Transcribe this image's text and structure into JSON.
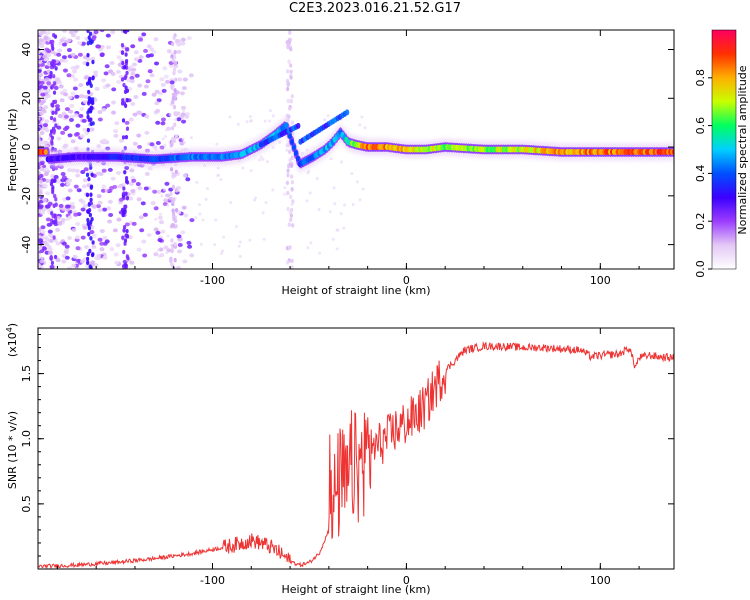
{
  "title": "C2E3.2023.016.21.52.G17",
  "chart_data": [
    {
      "type": "heatmap",
      "title": "C2E3.2023.016.21.52.G17",
      "xlabel": "Height of straight line (km)",
      "ylabel": "Frequency (Hz)",
      "xlim": [
        -190,
        138
      ],
      "ylim": [
        -50,
        48
      ],
      "xticks": [
        -100,
        0,
        100
      ],
      "yticks": [
        -40,
        -20,
        0,
        20,
        40
      ],
      "colorbar": {
        "label": "Normalized spectral amplitude",
        "range": [
          0,
          1
        ],
        "ticks": [
          0.0,
          0.2,
          0.4,
          0.6,
          0.8
        ],
        "colormap": [
          "#ffffff",
          "#e3c8f5",
          "#9b3dff",
          "#3a00ff",
          "#0050ff",
          "#00d0ff",
          "#00ff60",
          "#c8ff00",
          "#ffb000",
          "#ff3000",
          "#ff0060"
        ]
      },
      "signal_ridge": {
        "x": [
          -185,
          -170,
          -150,
          -130,
          -110,
          -95,
          -85,
          -75,
          -68,
          -62,
          -55,
          -48,
          -42,
          -38,
          -34,
          -30,
          -26,
          -20,
          -10,
          0,
          10,
          20,
          40,
          60,
          80,
          100,
          120,
          138
        ],
        "y": [
          -5,
          -4,
          -4,
          -5,
          -4,
          -4,
          -3,
          1,
          5,
          9,
          -7,
          -4,
          -1,
          2,
          6,
          2,
          1,
          0,
          0,
          -1,
          -1,
          0,
          -1,
          -1,
          -2,
          -2,
          -2,
          -2
        ],
        "amplitude": [
          0.3,
          0.3,
          0.35,
          0.4,
          0.45,
          0.45,
          0.5,
          0.5,
          0.5,
          0.45,
          0.4,
          0.45,
          0.5,
          0.5,
          0.45,
          0.6,
          0.75,
          0.9,
          0.85,
          0.8,
          0.75,
          0.7,
          0.7,
          0.75,
          0.85,
          0.9,
          0.9,
          0.95
        ]
      }
    },
    {
      "type": "line",
      "xlabel": "Height of straight line (km)",
      "ylabel": "SNR (10 * v/v)",
      "y_multiplier_label": "(x10",
      "y_multiplier_exp": "4",
      "xlim": [
        -190,
        138
      ],
      "ylim": [
        0,
        1.85
      ],
      "xticks": [
        -100,
        0,
        100
      ],
      "yticks": [
        0.5,
        1.0,
        1.5
      ],
      "ytick_labels": [
        "0.5",
        "1.0",
        "1.5"
      ],
      "color": "#ee3333",
      "series": [
        {
          "x": [
            -190,
            -170,
            -150,
            -130,
            -110,
            -100,
            -90,
            -80,
            -75,
            -70,
            -65,
            -60,
            -55,
            -50,
            -45,
            -40,
            -37,
            -34,
            -31,
            -28,
            -25,
            -22,
            -20,
            -15,
            -10,
            -5,
            0,
            5,
            10,
            15,
            20,
            25,
            30,
            40,
            50,
            60,
            70,
            80,
            90,
            95,
            100,
            110,
            115,
            118,
            120,
            125,
            130,
            138
          ],
          "y": [
            0.02,
            0.03,
            0.05,
            0.08,
            0.12,
            0.15,
            0.18,
            0.22,
            0.2,
            0.17,
            0.12,
            0.06,
            0.03,
            0.05,
            0.12,
            0.3,
            0.5,
            0.7,
            0.6,
            0.8,
            0.75,
            0.85,
            0.9,
            0.95,
            1.0,
            1.08,
            1.12,
            1.18,
            1.25,
            1.4,
            1.52,
            1.6,
            1.68,
            1.71,
            1.71,
            1.7,
            1.7,
            1.69,
            1.68,
            1.63,
            1.64,
            1.65,
            1.7,
            1.55,
            1.62,
            1.64,
            1.63,
            1.62
          ]
        }
      ]
    }
  ]
}
